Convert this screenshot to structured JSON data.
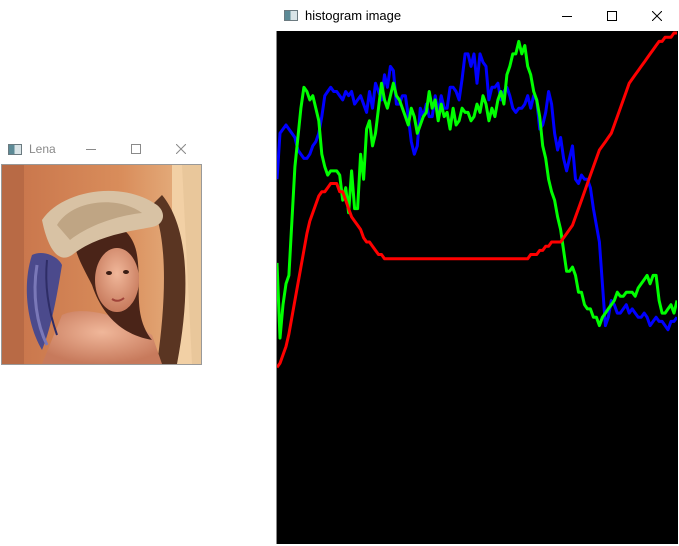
{
  "lena_window": {
    "title": "Lena",
    "icon": "opencv-window-icon",
    "controls": [
      "minimize-icon",
      "maximize-icon",
      "close-icon"
    ],
    "image": "lena-photo"
  },
  "histogram_window": {
    "title": "histogram image",
    "icon": "opencv-window-icon",
    "controls": [
      "minimize-icon",
      "maximize-icon",
      "close-icon"
    ],
    "background_color": "#000000",
    "chart_data": {
      "type": "line",
      "title": "",
      "xlabel": "",
      "ylabel": "",
      "x_unit": "histogram bin",
      "ylim": [
        0,
        100
      ],
      "grid": false,
      "legend": "none",
      "series": [
        {
          "color": "#0000ff",
          "values": [
            65,
            76,
            77,
            78,
            77,
            76,
            75,
            72,
            71,
            70,
            70,
            71,
            73,
            74,
            76,
            80,
            85,
            86,
            87,
            86,
            86,
            85,
            84,
            86,
            85,
            86,
            83,
            84,
            85,
            83,
            81,
            86,
            82,
            88,
            86,
            84,
            90,
            87,
            92,
            91,
            83,
            83,
            85,
            85,
            80,
            74,
            71,
            73,
            82,
            80,
            83,
            80,
            80,
            85,
            81,
            85,
            82,
            82,
            87,
            87,
            86,
            84,
            89,
            95,
            95,
            92,
            95,
            88,
            95,
            93,
            92,
            84,
            87,
            87,
            88,
            84,
            86,
            87,
            85,
            82,
            81,
            82,
            82,
            83,
            85,
            82,
            85,
            84,
            77,
            78,
            81,
            86,
            83,
            76,
            72,
            75,
            70,
            67,
            70,
            73,
            65,
            64,
            66,
            65,
            65,
            63,
            58,
            54,
            50,
            40,
            30,
            32,
            36,
            35,
            33,
            33,
            34,
            35,
            33,
            34,
            33,
            32,
            32,
            33,
            32,
            30,
            31,
            32,
            31,
            31,
            30,
            29,
            31,
            31,
            32
          ]
        },
        {
          "color": "#00ff00",
          "values": [
            45,
            27,
            35,
            40,
            42,
            55,
            68,
            75,
            82,
            87,
            86,
            84,
            85,
            82,
            79,
            71,
            68,
            66,
            67,
            67,
            67,
            66,
            60,
            63,
            57,
            67,
            58,
            58,
            71,
            65,
            77,
            79,
            73,
            76,
            82,
            88,
            84,
            82,
            85,
            88,
            85,
            84,
            82,
            80,
            78,
            82,
            80,
            76,
            78,
            80,
            81,
            86,
            82,
            84,
            79,
            83,
            80,
            81,
            77,
            82,
            78,
            79,
            82,
            81,
            81,
            79,
            80,
            83,
            81,
            85,
            83,
            79,
            82,
            80,
            84,
            86,
            83,
            90,
            92,
            95,
            95,
            98,
            95,
            97,
            92,
            90,
            86,
            84,
            80,
            73,
            70,
            65,
            62,
            60,
            56,
            53,
            48,
            43,
            43,
            44,
            42,
            38,
            38,
            35,
            34,
            34,
            32,
            32,
            30,
            32,
            33,
            34,
            35,
            36,
            38,
            37,
            37,
            38,
            38,
            38,
            37,
            39,
            40,
            41,
            42,
            40,
            42,
            42,
            36,
            33,
            33,
            34,
            35,
            33,
            36
          ]
        },
        {
          "color": "#ff0000",
          "values": [
            20,
            21,
            23,
            25,
            28,
            32,
            36,
            40,
            44,
            48,
            52,
            55,
            57,
            59,
            61,
            62,
            62,
            63,
            64,
            64,
            64,
            62,
            62,
            60,
            58,
            56,
            55,
            54,
            53,
            51,
            50,
            50,
            49,
            48,
            47,
            47,
            46,
            46,
            46,
            46,
            46,
            46,
            46,
            46,
            46,
            46,
            46,
            46,
            46,
            46,
            46,
            46,
            46,
            46,
            46,
            46,
            46,
            46,
            46,
            46,
            46,
            46,
            46,
            46,
            46,
            46,
            46,
            46,
            46,
            46,
            46,
            46,
            46,
            46,
            46,
            46,
            46,
            46,
            46,
            46,
            46,
            46,
            46,
            46,
            46,
            47,
            47,
            47,
            48,
            48,
            49,
            49,
            50,
            50,
            50,
            50,
            51,
            52,
            53,
            54,
            56,
            58,
            60,
            62,
            64,
            66,
            68,
            70,
            72,
            73,
            74,
            75,
            76,
            78,
            80,
            82,
            84,
            86,
            88,
            89,
            90,
            91,
            92,
            93,
            94,
            95,
            96,
            97,
            98,
            98,
            99,
            99,
            99,
            100,
            100
          ]
        }
      ]
    }
  }
}
